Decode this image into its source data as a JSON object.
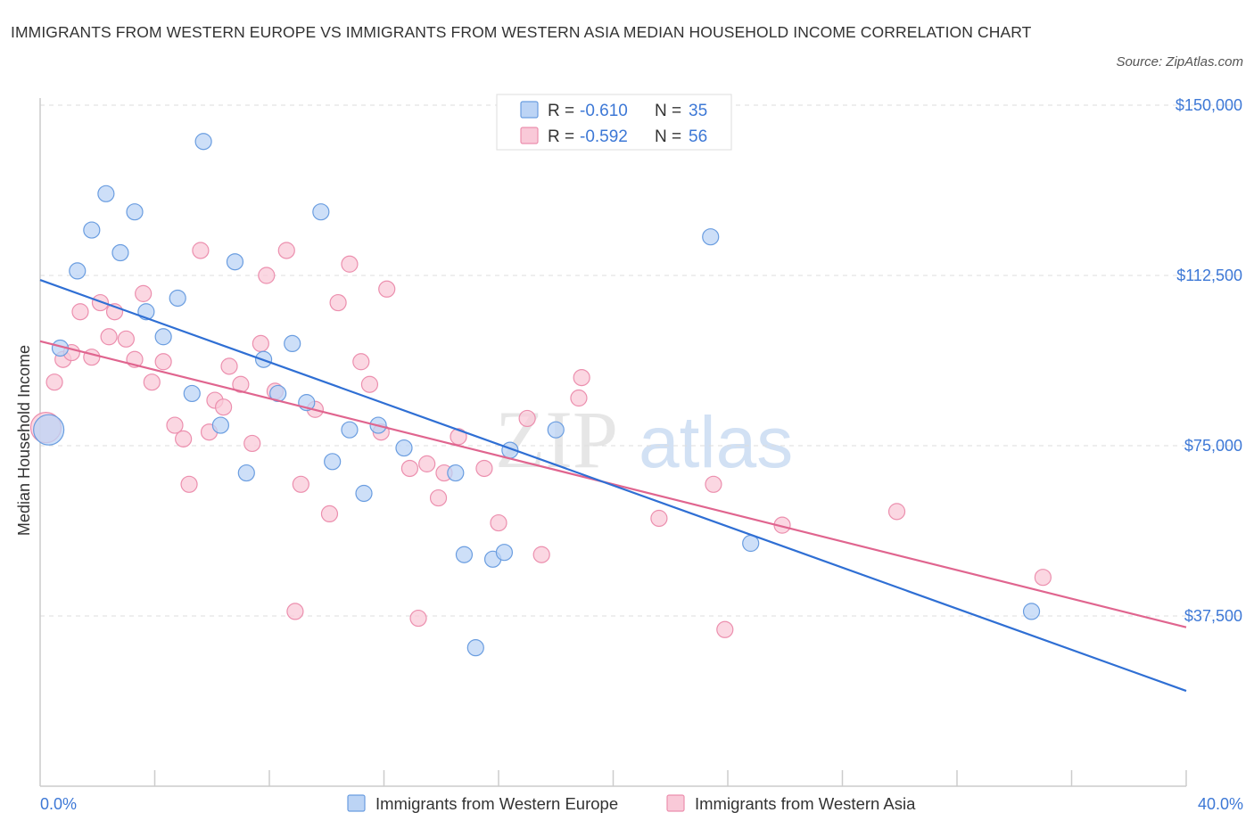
{
  "title": "IMMIGRANTS FROM WESTERN EUROPE VS IMMIGRANTS FROM WESTERN ASIA MEDIAN HOUSEHOLD INCOME CORRELATION CHART",
  "source": "Source: ZipAtlas.com",
  "watermark": {
    "zip": "ZIP",
    "atlas": "atlas"
  },
  "colors": {
    "blue_fill": "#bcd4f5",
    "blue_stroke": "#6a9de0",
    "blue_line": "#2f6fd4",
    "pink_fill": "#f9c9d8",
    "pink_stroke": "#ec8fae",
    "pink_line": "#e0658f",
    "axis_text": "#3d78d6",
    "grid": "#dddddd"
  },
  "legend": {
    "rows": [
      {
        "r_label": "R =",
        "r_value": "-0.610",
        "n_label": "N =",
        "n_value": "35"
      },
      {
        "r_label": "R =",
        "r_value": "-0.592",
        "n_label": "N =",
        "n_value": "56"
      }
    ]
  },
  "chart_data": {
    "type": "scatter",
    "title": "IMMIGRANTS FROM WESTERN EUROPE VS IMMIGRANTS FROM WESTERN ASIA MEDIAN HOUSEHOLD INCOME CORRELATION CHART",
    "xlabel": "",
    "ylabel": "Median Household Income",
    "xlim": [
      0,
      40
    ],
    "ylim": [
      0,
      150000
    ],
    "x_tick_labels": [
      "0.0%",
      "40.0%"
    ],
    "y_ticks": [
      37500,
      75000,
      112500,
      150000
    ],
    "y_tick_labels": [
      "$37,500",
      "$75,000",
      "$112,500",
      "$150,000"
    ],
    "grid": true,
    "legend_position": "top-center",
    "series": [
      {
        "name": "Immigrants from Western Europe",
        "color": "#6a9de0",
        "r": -0.61,
        "n": 35,
        "trend": {
          "x": [
            0,
            40
          ],
          "y": [
            111500,
            21000
          ]
        },
        "points": [
          {
            "x": 0.3,
            "y": 78500,
            "size": "large"
          },
          {
            "x": 0.7,
            "y": 96500
          },
          {
            "x": 1.3,
            "y": 113500
          },
          {
            "x": 1.8,
            "y": 122500
          },
          {
            "x": 2.3,
            "y": 130500
          },
          {
            "x": 2.8,
            "y": 117500
          },
          {
            "x": 3.3,
            "y": 126500
          },
          {
            "x": 3.7,
            "y": 104500
          },
          {
            "x": 4.3,
            "y": 99000
          },
          {
            "x": 4.8,
            "y": 107500
          },
          {
            "x": 5.3,
            "y": 86500
          },
          {
            "x": 5.7,
            "y": 142000
          },
          {
            "x": 6.3,
            "y": 79500
          },
          {
            "x": 6.8,
            "y": 115500
          },
          {
            "x": 7.2,
            "y": 69000
          },
          {
            "x": 7.8,
            "y": 94000
          },
          {
            "x": 8.3,
            "y": 86500
          },
          {
            "x": 8.8,
            "y": 97500
          },
          {
            "x": 9.3,
            "y": 84500
          },
          {
            "x": 9.8,
            "y": 126500
          },
          {
            "x": 10.2,
            "y": 71500
          },
          {
            "x": 10.8,
            "y": 78500
          },
          {
            "x": 11.3,
            "y": 64500
          },
          {
            "x": 11.8,
            "y": 79500
          },
          {
            "x": 12.7,
            "y": 74500
          },
          {
            "x": 14.5,
            "y": 69000
          },
          {
            "x": 14.8,
            "y": 51000
          },
          {
            "x": 15.2,
            "y": 30500
          },
          {
            "x": 15.8,
            "y": 50000
          },
          {
            "x": 16.2,
            "y": 51500
          },
          {
            "x": 16.4,
            "y": 74000
          },
          {
            "x": 18.0,
            "y": 78500
          },
          {
            "x": 23.4,
            "y": 121000
          },
          {
            "x": 24.8,
            "y": 53500
          },
          {
            "x": 34.6,
            "y": 38500
          }
        ]
      },
      {
        "name": "Immigrants from Western Asia",
        "color": "#ec8fae",
        "r": -0.592,
        "n": 56,
        "trend": {
          "x": [
            0,
            40
          ],
          "y": [
            98000,
            35000
          ]
        },
        "points": [
          {
            "x": 0.2,
            "y": 79000,
            "size": "large"
          },
          {
            "x": 0.5,
            "y": 89000
          },
          {
            "x": 0.8,
            "y": 94000
          },
          {
            "x": 1.1,
            "y": 95500
          },
          {
            "x": 1.4,
            "y": 104500
          },
          {
            "x": 1.8,
            "y": 94500
          },
          {
            "x": 2.1,
            "y": 106500
          },
          {
            "x": 2.4,
            "y": 99000
          },
          {
            "x": 2.6,
            "y": 104500
          },
          {
            "x": 3.0,
            "y": 98500
          },
          {
            "x": 3.3,
            "y": 94000
          },
          {
            "x": 3.6,
            "y": 108500
          },
          {
            "x": 3.9,
            "y": 89000
          },
          {
            "x": 4.3,
            "y": 93500
          },
          {
            "x": 4.7,
            "y": 79500
          },
          {
            "x": 5.0,
            "y": 76500
          },
          {
            "x": 5.2,
            "y": 66500
          },
          {
            "x": 5.6,
            "y": 118000
          },
          {
            "x": 5.9,
            "y": 78000
          },
          {
            "x": 6.1,
            "y": 85000
          },
          {
            "x": 6.4,
            "y": 83500
          },
          {
            "x": 6.6,
            "y": 92500
          },
          {
            "x": 7.0,
            "y": 88500
          },
          {
            "x": 7.4,
            "y": 75500
          },
          {
            "x": 7.7,
            "y": 97500
          },
          {
            "x": 7.9,
            "y": 112500
          },
          {
            "x": 8.2,
            "y": 87000
          },
          {
            "x": 8.6,
            "y": 118000
          },
          {
            "x": 8.9,
            "y": 38500
          },
          {
            "x": 9.1,
            "y": 66500
          },
          {
            "x": 9.6,
            "y": 83000
          },
          {
            "x": 10.1,
            "y": 60000
          },
          {
            "x": 10.4,
            "y": 106500
          },
          {
            "x": 10.8,
            "y": 115000
          },
          {
            "x": 11.2,
            "y": 93500
          },
          {
            "x": 11.5,
            "y": 88500
          },
          {
            "x": 11.9,
            "y": 78000
          },
          {
            "x": 12.1,
            "y": 109500
          },
          {
            "x": 12.9,
            "y": 70000
          },
          {
            "x": 13.2,
            "y": 37000
          },
          {
            "x": 13.5,
            "y": 71000
          },
          {
            "x": 13.9,
            "y": 63500
          },
          {
            "x": 14.1,
            "y": 69000
          },
          {
            "x": 14.6,
            "y": 77000
          },
          {
            "x": 15.5,
            "y": 70000
          },
          {
            "x": 16.0,
            "y": 58000
          },
          {
            "x": 17.0,
            "y": 81000
          },
          {
            "x": 17.5,
            "y": 51000
          },
          {
            "x": 18.8,
            "y": 85500
          },
          {
            "x": 18.9,
            "y": 90000
          },
          {
            "x": 21.6,
            "y": 59000
          },
          {
            "x": 23.5,
            "y": 66500
          },
          {
            "x": 23.9,
            "y": 34500
          },
          {
            "x": 25.9,
            "y": 57500
          },
          {
            "x": 29.9,
            "y": 60500
          },
          {
            "x": 35.0,
            "y": 46000
          }
        ]
      }
    ]
  }
}
